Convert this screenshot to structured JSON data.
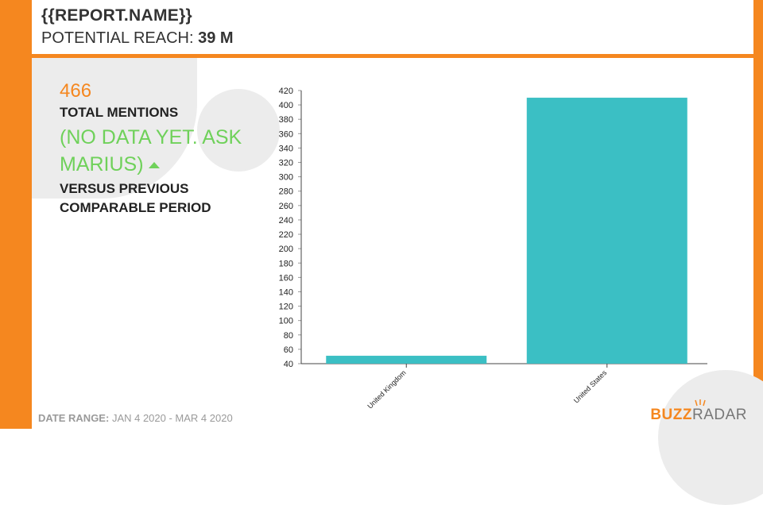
{
  "header": {
    "report_name": "{{REPORT.NAME}}",
    "reach_label": "POTENTIAL REACH:",
    "reach_value": "39 M"
  },
  "stats": {
    "total_value": "466",
    "total_label": "TOTAL MENTIONS",
    "change_text": "(NO DATA YET. ASK MARIUS)",
    "versus_line1": "VERSUS PREVIOUS",
    "versus_line2": "COMPARABLE PERIOD"
  },
  "footer": {
    "range_label": "DATE RANGE:",
    "range_value": "JAN 4 2020 - MAR 4 2020",
    "logo_buzz": "BUZZ",
    "logo_radar": "RADAR"
  },
  "colors": {
    "accent": "#f5871f",
    "bar": "#3bbfc4",
    "positive": "#6fd15a"
  },
  "chart_data": {
    "type": "bar",
    "categories": [
      "United Kingdom",
      "United States"
    ],
    "values": [
      51,
      410
    ],
    "ylim": [
      40,
      420
    ],
    "yticks": [
      40,
      60,
      80,
      100,
      120,
      140,
      160,
      180,
      200,
      220,
      240,
      260,
      280,
      300,
      320,
      340,
      360,
      380,
      400,
      420
    ],
    "xlabel": "",
    "ylabel": "",
    "title": ""
  }
}
